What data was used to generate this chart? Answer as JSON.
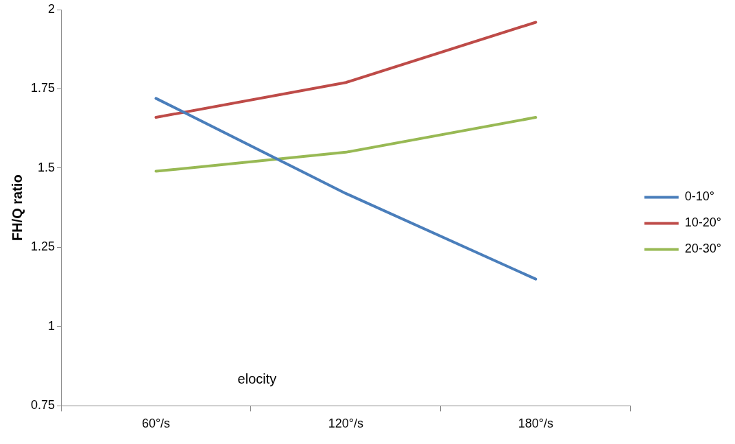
{
  "chart_data": {
    "type": "line",
    "ylabel": "FH/Q ratio",
    "categories": [
      "60°/s",
      "120°/s",
      "180°/s"
    ],
    "series": [
      {
        "name": "0-10°",
        "color": "#4a7ebb",
        "values": [
          1.72,
          1.42,
          1.15
        ]
      },
      {
        "name": "10-20°",
        "color": "#be4b48",
        "values": [
          1.66,
          1.77,
          1.96
        ]
      },
      {
        "name": "20-30°",
        "color": "#98b954",
        "values": [
          1.49,
          1.55,
          1.66
        ]
      }
    ],
    "ylim": [
      0.75,
      2
    ],
    "yticks": [
      0.75,
      1,
      1.25,
      1.5,
      1.75,
      2
    ],
    "grid": false,
    "legend": "right",
    "marker": "none",
    "line_style": "solid",
    "annotations": [
      "elocity"
    ]
  }
}
